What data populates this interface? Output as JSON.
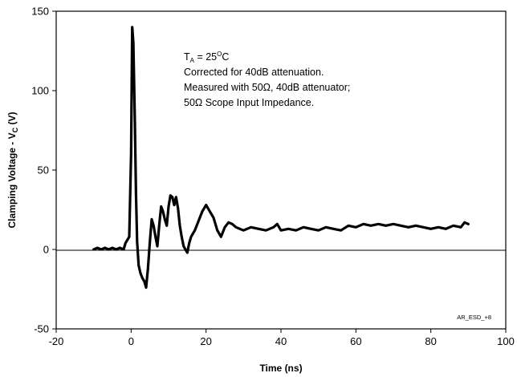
{
  "chart_data": {
    "type": "line",
    "title": "",
    "xlabel": "Time (ns)",
    "ylabel": {
      "main": "Clamping Voltage - V",
      "sub": "C",
      "unit": " (V)"
    },
    "xlim": [
      -20,
      100
    ],
    "ylim": [
      -50,
      150
    ],
    "x_ticks": [
      "-20",
      "0",
      "20",
      "40",
      "60",
      "80",
      "100"
    ],
    "y_ticks": [
      "150",
      "100",
      "50",
      "0",
      "-50"
    ],
    "grid": false,
    "legend": "none",
    "line_color": "#000000",
    "annotations": {
      "line1": {
        "t": "T",
        "sub": "A",
        "eq": " = 25",
        "sup": "O",
        "unit": "C"
      },
      "line2": "Corrected for 40dB attenuation.",
      "line3": "Measured with 50Ω, 40dB attenuator;",
      "line4": "50Ω Scope Input Impedance."
    },
    "corner_code": "AR_ESD_+8",
    "series": [
      {
        "x": [
          -10,
          -9,
          -8,
          -7,
          -6,
          -5,
          -4,
          -3,
          -2,
          -1.5,
          -1,
          -0.5,
          0,
          0.3,
          0.6,
          1.0,
          1.3,
          1.6,
          2.0,
          2.5,
          3.0,
          3.5,
          4.0,
          4.5,
          5.0,
          5.5,
          6.0,
          6.5,
          7.0,
          7.5,
          8.0,
          8.5,
          9.0,
          9.5,
          10.0,
          10.5,
          11.0,
          11.5,
          12.0,
          12.5,
          13.0,
          13.5,
          14.0,
          14.5,
          15.0,
          15.5,
          16.0,
          17.0,
          18.0,
          19.0,
          20.0,
          21.0,
          22.0,
          23.0,
          24.0,
          25.0,
          26.0,
          27.0,
          28.0,
          29.0,
          30.0,
          32.0,
          34.0,
          36.0,
          38.0,
          39.0,
          40.0,
          42.0,
          44.0,
          46.0,
          48.0,
          50.0,
          52.0,
          54.0,
          56.0,
          58.0,
          60.0,
          62.0,
          64.0,
          66.0,
          68.0,
          70.0,
          72.0,
          74.0,
          76.0,
          78.0,
          80.0,
          82.0,
          84.0,
          86.0,
          88.0,
          89.0,
          90.0
        ],
        "y": [
          0,
          1,
          0,
          1,
          0,
          1,
          0,
          1,
          0,
          4,
          6,
          8,
          60,
          140,
          130,
          80,
          35,
          5,
          -10,
          -15,
          -18,
          -20,
          -24,
          -12,
          5,
          19,
          15,
          8,
          2,
          15,
          27,
          24,
          19,
          15,
          27,
          34,
          33,
          28,
          33,
          26,
          15,
          8,
          2,
          0,
          -2,
          4,
          8,
          12,
          18,
          24,
          28,
          24,
          20,
          12,
          8,
          14,
          17,
          16,
          14,
          13,
          12,
          14,
          13,
          12,
          14,
          16,
          12,
          13,
          12,
          14,
          13,
          12,
          14,
          13,
          12,
          15,
          14,
          16,
          15,
          16,
          15,
          16,
          15,
          14,
          15,
          14,
          13,
          14,
          13,
          15,
          14,
          17,
          16
        ]
      }
    ]
  }
}
